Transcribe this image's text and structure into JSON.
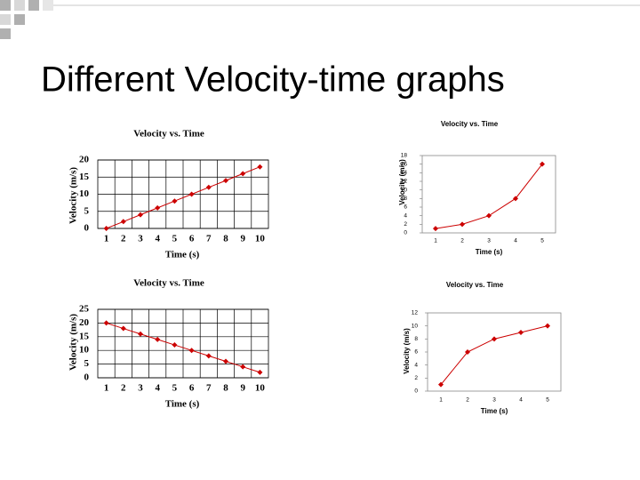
{
  "heading": "Different Velocity-time graphs",
  "chart_data": [
    {
      "type": "line",
      "title": "Velocity vs. Time",
      "x_label": "Time (s)",
      "y_label": "Velocity (m/s)",
      "categories": [
        "1",
        "2",
        "3",
        "4",
        "5",
        "6",
        "7",
        "8",
        "9",
        "10"
      ],
      "values": [
        0,
        2,
        4,
        6,
        8,
        10,
        12,
        14,
        16,
        18
      ],
      "color": "#cc0000",
      "ylim": [
        0,
        20
      ],
      "yticks": [
        0,
        5,
        10,
        15,
        20
      ],
      "grid": true
    },
    {
      "type": "line",
      "title": "Velocity vs. Time",
      "x_label": "Time (s)",
      "y_label": "Velocity (m/s)",
      "categories": [
        "1",
        "2",
        "3",
        "4",
        "5"
      ],
      "values": [
        1,
        2,
        4,
        8,
        16
      ],
      "color": "#cc0000",
      "ylim": [
        0,
        18
      ],
      "yticks": [
        0,
        2,
        4,
        6,
        8,
        10,
        12,
        14,
        16,
        18
      ],
      "grid": false
    },
    {
      "type": "line",
      "title": "Velocity vs. Time",
      "x_label": "Time (s)",
      "y_label": "Velocity (m/s)",
      "categories": [
        "1",
        "2",
        "3",
        "4",
        "5",
        "6",
        "7",
        "8",
        "9",
        "10"
      ],
      "values": [
        20,
        18,
        16,
        14,
        12,
        10,
        8,
        6,
        4,
        2
      ],
      "color": "#cc0000",
      "ylim": [
        0,
        25
      ],
      "yticks": [
        0,
        5,
        10,
        15,
        20,
        25
      ],
      "grid": true
    },
    {
      "type": "line",
      "title": "Velocity vs. Time",
      "x_label": "Time (s)",
      "y_label": "Velocity (m/s)",
      "categories": [
        "1",
        "2",
        "3",
        "4",
        "5"
      ],
      "values": [
        1,
        6,
        8,
        9,
        10
      ],
      "color": "#cc0000",
      "ylim": [
        0,
        12
      ],
      "yticks": [
        0,
        2,
        4,
        6,
        8,
        10,
        12
      ],
      "grid": false
    }
  ]
}
